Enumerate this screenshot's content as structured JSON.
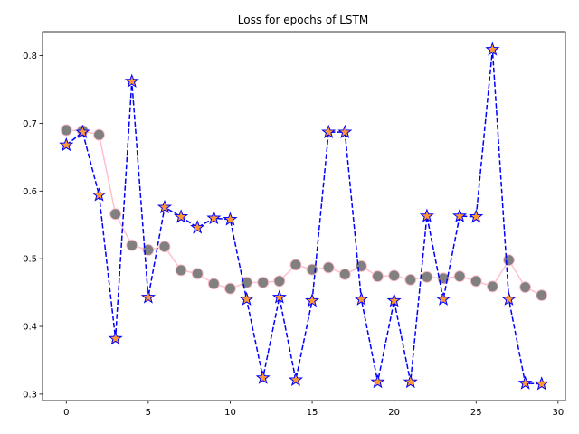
{
  "chart_data": {
    "type": "line",
    "title": "Loss for epochs of LSTM",
    "xlabel": "",
    "ylabel": "",
    "xlim": [
      -1.45,
      30.45
    ],
    "ylim": [
      0.2905,
      0.8355
    ],
    "xticks": [
      0,
      5,
      10,
      15,
      20,
      25,
      30
    ],
    "yticks": [
      0.3,
      0.4,
      0.5,
      0.6,
      0.7,
      0.8
    ],
    "grid": false,
    "legend": "none",
    "x": [
      0,
      1,
      2,
      3,
      4,
      5,
      6,
      7,
      8,
      9,
      10,
      11,
      12,
      13,
      14,
      15,
      16,
      17,
      18,
      19,
      20,
      21,
      22,
      23,
      24,
      25,
      26,
      27,
      28,
      29
    ],
    "series": [
      {
        "values": [
          0.69,
          0.689,
          0.683,
          0.566,
          0.52,
          0.513,
          0.518,
          0.483,
          0.478,
          0.463,
          0.456,
          0.465,
          0.465,
          0.467,
          0.491,
          0.484,
          0.487,
          0.477,
          0.489,
          0.474,
          0.475,
          0.469,
          0.473,
          0.471,
          0.474,
          0.467,
          0.459,
          0.498,
          0.458,
          0.446
        ],
        "line_color": "#ffc0cb",
        "line_style": "solid",
        "marker": "circle",
        "marker_face": "#808080",
        "marker_edge": "#ffc0cb"
      },
      {
        "values": [
          0.668,
          0.687,
          0.594,
          0.382,
          0.762,
          0.443,
          0.576,
          0.562,
          0.546,
          0.56,
          0.558,
          0.44,
          0.324,
          0.443,
          0.321,
          0.438,
          0.687,
          0.687,
          0.44,
          0.318,
          0.438,
          0.318,
          0.563,
          0.44,
          0.563,
          0.562,
          0.809,
          0.44,
          0.316,
          0.315
        ],
        "line_color": "#0000ff",
        "line_style": "dashed",
        "marker": "star",
        "marker_face": "#ff9933",
        "marker_edge": "#0000ff"
      }
    ]
  }
}
